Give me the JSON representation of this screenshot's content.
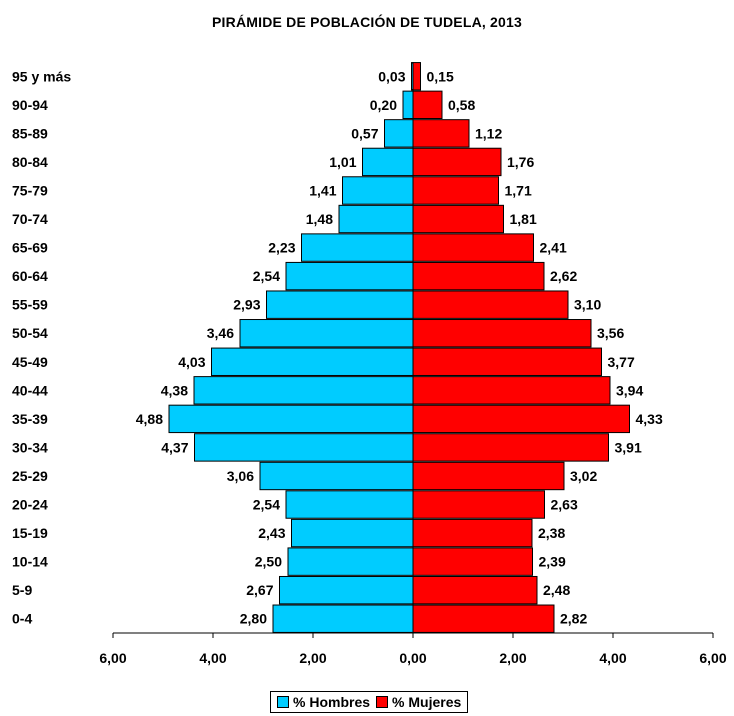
{
  "chart_data": {
    "type": "bar",
    "title": "PIRÁMIDE DE POBLACIÓN DE TUDELA, 2013",
    "categories": [
      "0-4",
      "5-9",
      "10-14",
      "15-19",
      "20-24",
      "25-29",
      "30-34",
      "35-39",
      "40-44",
      "45-49",
      "50-54",
      "55-59",
      "60-64",
      "65-69",
      "70-74",
      "75-79",
      "80-84",
      "85-89",
      "90-94",
      "95 y más"
    ],
    "series": [
      {
        "name": "% Hombres",
        "color": "#00CCFF",
        "values": [
          2.8,
          2.67,
          2.5,
          2.43,
          2.54,
          3.06,
          4.37,
          4.88,
          4.38,
          4.03,
          3.46,
          2.93,
          2.54,
          2.23,
          1.48,
          1.41,
          1.01,
          0.57,
          0.2,
          0.03
        ],
        "labels": [
          "2,80",
          "2,67",
          "2,50",
          "2,43",
          "2,54",
          "3,06",
          "4,37",
          "4,88",
          "4,38",
          "4,03",
          "3,46",
          "2,93",
          "2,54",
          "2,23",
          "1,48",
          "1,41",
          "1,01",
          "0,57",
          "0,20",
          "0,03"
        ]
      },
      {
        "name": "% Mujeres",
        "color": "#FF0000",
        "values": [
          2.82,
          2.48,
          2.39,
          2.38,
          2.63,
          3.02,
          3.91,
          4.33,
          3.94,
          3.77,
          3.56,
          3.1,
          2.62,
          2.41,
          1.81,
          1.71,
          1.76,
          1.12,
          0.58,
          0.15
        ],
        "labels": [
          "2,82",
          "2,48",
          "2,39",
          "2,38",
          "2,63",
          "3,02",
          "3,91",
          "4,33",
          "3,94",
          "3,77",
          "3,56",
          "3,10",
          "2,62",
          "2,41",
          "1,81",
          "1,71",
          "1,76",
          "1,12",
          "0,58",
          "0,15"
        ]
      }
    ],
    "xlim": [
      -6,
      6
    ],
    "xticks": [
      "6,00",
      "4,00",
      "2,00",
      "0,00",
      "2,00",
      "4,00",
      "6,00"
    ],
    "legend": "bottom"
  }
}
